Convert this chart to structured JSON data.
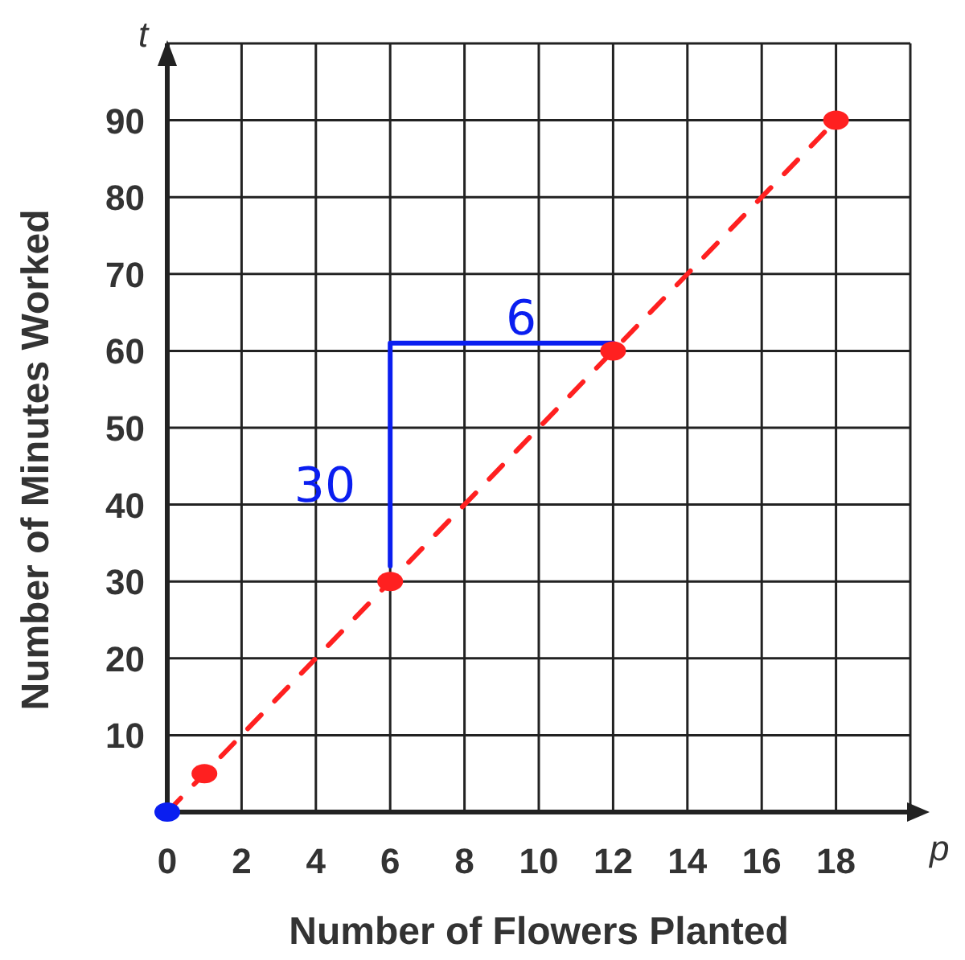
{
  "chart_data": {
    "type": "scatter",
    "xlabel": "Number of Flowers Planted",
    "ylabel": "Number of Minutes Worked",
    "xlim": [
      0,
      20
    ],
    "ylim": [
      0,
      100
    ],
    "xticks": [
      0,
      2,
      4,
      6,
      8,
      10,
      12,
      14,
      16,
      18
    ],
    "yticks": [
      10,
      20,
      30,
      40,
      50,
      60,
      70,
      80,
      90
    ],
    "grid": true,
    "series": [
      {
        "type": "line",
        "color": "#ff2020",
        "line_style": "dashed",
        "x": [
          0,
          18
        ],
        "values": [
          0,
          90
        ]
      },
      {
        "type": "line",
        "color": "#0a1ef0",
        "line_style": "solid",
        "x": [
          6,
          6,
          12
        ],
        "values": [
          32,
          61,
          61
        ]
      },
      {
        "marker": "circle",
        "x": [
          0,
          1,
          6,
          12,
          18
        ],
        "values": [
          0,
          5,
          30,
          60,
          90
        ],
        "colors": [
          "#0a1ef0",
          "#ff2020",
          "#ff2020",
          "#ff2020",
          "#ff2020"
        ]
      }
    ],
    "annotations": [
      "30",
      "6",
      "t",
      "p"
    ]
  }
}
